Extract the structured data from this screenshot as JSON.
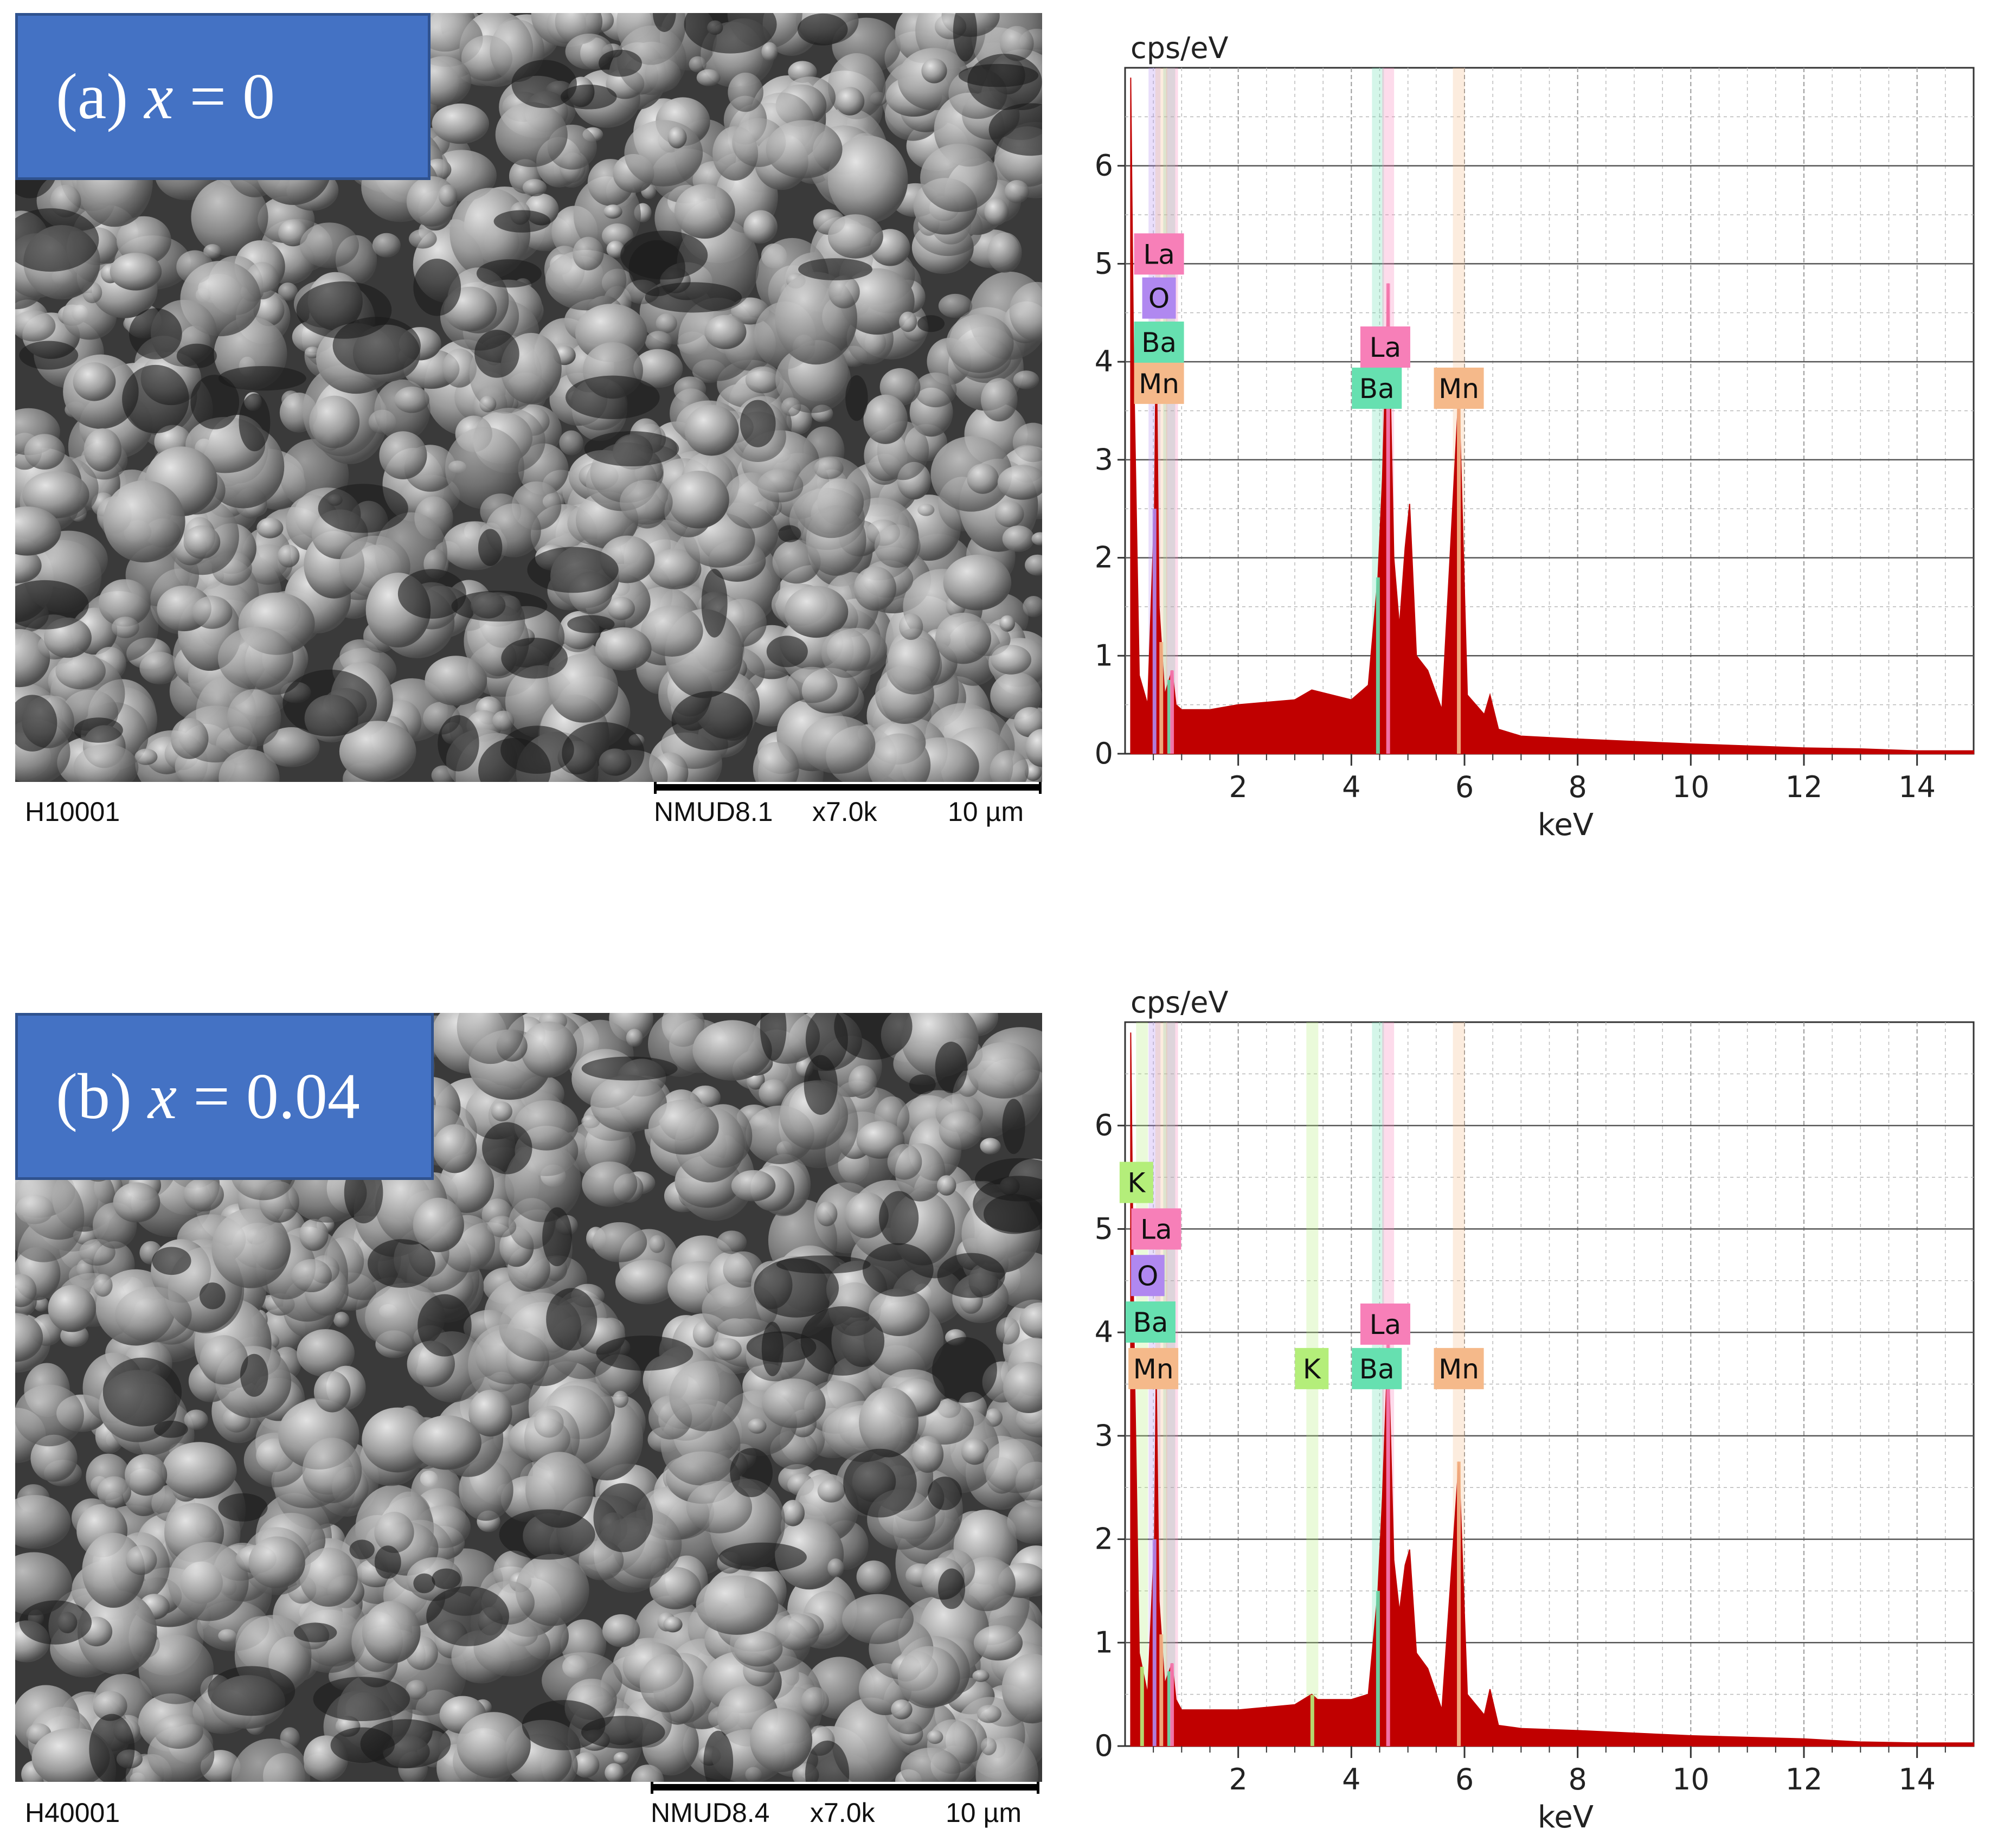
{
  "panels": [
    {
      "label_prefix": "(a)",
      "label_var": "x",
      "label_eq": "= 0",
      "sem": {
        "id": "H10001",
        "instrument": "NMUD8.1",
        "magnification": "x7.0k",
        "scale": "10 µm"
      }
    },
    {
      "label_prefix": "(b)",
      "label_var": "x",
      "label_eq": "= 0.04",
      "sem": {
        "id": "H40001",
        "instrument": "NMUD8.4",
        "magnification": "x7.0k",
        "scale": "10 µm"
      }
    }
  ],
  "element_colors": {
    "La": "#f77fb8",
    "O": "#b088f0",
    "Ba": "#66e0b0",
    "Mn": "#f5b98a",
    "K": "#b4ee7a"
  },
  "chart_data": [
    {
      "type": "area",
      "xlabel": "keV",
      "ylabel": "cps/eV",
      "xlim": [
        0,
        15
      ],
      "ylim": [
        0,
        7
      ],
      "xticks": [
        2,
        4,
        6,
        8,
        10,
        12,
        14
      ],
      "yticks": [
        0,
        1,
        2,
        3,
        4,
        5,
        6
      ],
      "grid": true,
      "spectrum_color": "#c00000",
      "x": [
        0.1,
        0.15,
        0.25,
        0.4,
        0.52,
        0.55,
        0.6,
        0.7,
        0.83,
        0.9,
        1.0,
        1.5,
        2.0,
        3.0,
        3.3,
        4.0,
        4.3,
        4.47,
        4.55,
        4.65,
        4.75,
        4.85,
        4.95,
        5.03,
        5.15,
        5.35,
        5.6,
        5.9,
        6.05,
        6.35,
        6.45,
        6.6,
        7.0,
        8.0,
        10.0,
        12.0,
        13.0,
        14.0,
        15.0
      ],
      "y": [
        6.9,
        4.0,
        0.8,
        0.5,
        2.5,
        4.3,
        1.5,
        0.6,
        0.85,
        0.5,
        0.45,
        0.45,
        0.5,
        0.55,
        0.65,
        0.55,
        0.7,
        1.8,
        2.8,
        4.8,
        2.0,
        1.3,
        2.1,
        2.55,
        1.0,
        0.85,
        0.45,
        3.7,
        0.6,
        0.4,
        0.6,
        0.25,
        0.18,
        0.15,
        0.1,
        0.06,
        0.05,
        0.03,
        0.03
      ],
      "element_lines": [
        {
          "element": "O",
          "energy": 0.52
        },
        {
          "element": "Ba",
          "energy": 0.78
        },
        {
          "element": "La",
          "energy": 0.83
        },
        {
          "element": "Mn",
          "energy": 0.64
        },
        {
          "element": "Ba",
          "energy": 4.47
        },
        {
          "element": "La",
          "energy": 4.65
        },
        {
          "element": "Mn",
          "energy": 5.9
        }
      ],
      "tags": [
        {
          "element": "La",
          "text": "La",
          "x": 0.6,
          "y": 5.1
        },
        {
          "element": "O",
          "text": "O",
          "x": 0.6,
          "y": 4.65
        },
        {
          "element": "Ba",
          "text": "Ba",
          "x": 0.6,
          "y": 4.2
        },
        {
          "element": "Mn",
          "text": "Mn",
          "x": 0.6,
          "y": 3.78
        },
        {
          "element": "La",
          "text": "La",
          "x": 4.6,
          "y": 4.15
        },
        {
          "element": "Ba",
          "text": "Ba",
          "x": 4.45,
          "y": 3.73
        },
        {
          "element": "Mn",
          "text": "Mn",
          "x": 5.9,
          "y": 3.73
        }
      ]
    },
    {
      "type": "area",
      "xlabel": "keV",
      "ylabel": "cps/eV",
      "xlim": [
        0,
        15
      ],
      "ylim": [
        0,
        7
      ],
      "xticks": [
        2,
        4,
        6,
        8,
        10,
        12,
        14
      ],
      "yticks": [
        0,
        1,
        2,
        3,
        4,
        5,
        6
      ],
      "grid": true,
      "spectrum_color": "#c00000",
      "x": [
        0.1,
        0.15,
        0.25,
        0.4,
        0.52,
        0.55,
        0.6,
        0.7,
        0.83,
        0.9,
        1.0,
        1.5,
        2.0,
        3.0,
        3.3,
        3.4,
        4.0,
        4.3,
        4.47,
        4.55,
        4.65,
        4.75,
        4.85,
        4.95,
        5.03,
        5.15,
        5.35,
        5.6,
        5.9,
        6.05,
        6.35,
        6.45,
        6.6,
        7.0,
        8.0,
        10.0,
        12.0,
        13.0,
        14.0,
        15.0
      ],
      "y": [
        6.9,
        4.2,
        0.9,
        0.5,
        2.0,
        3.6,
        1.4,
        0.6,
        0.8,
        0.45,
        0.35,
        0.35,
        0.35,
        0.4,
        0.5,
        0.45,
        0.45,
        0.5,
        1.5,
        2.4,
        3.9,
        1.8,
        1.3,
        1.75,
        1.9,
        0.9,
        0.75,
        0.35,
        2.75,
        0.5,
        0.3,
        0.55,
        0.2,
        0.17,
        0.15,
        0.1,
        0.07,
        0.04,
        0.03,
        0.03
      ],
      "element_lines": [
        {
          "element": "O",
          "energy": 0.52
        },
        {
          "element": "K",
          "energy": 0.3
        },
        {
          "element": "Ba",
          "energy": 0.78
        },
        {
          "element": "La",
          "energy": 0.83
        },
        {
          "element": "Mn",
          "energy": 0.64
        },
        {
          "element": "K",
          "energy": 3.31
        },
        {
          "element": "Ba",
          "energy": 4.47
        },
        {
          "element": "La",
          "energy": 4.65
        },
        {
          "element": "Mn",
          "energy": 5.9
        }
      ],
      "tags": [
        {
          "element": "K",
          "text": "K",
          "x": 0.2,
          "y": 5.45
        },
        {
          "element": "La",
          "text": "La",
          "x": 0.55,
          "y": 5.0
        },
        {
          "element": "O",
          "text": "O",
          "x": 0.4,
          "y": 4.55
        },
        {
          "element": "Ba",
          "text": "Ba",
          "x": 0.45,
          "y": 4.1
        },
        {
          "element": "Mn",
          "text": "Mn",
          "x": 0.5,
          "y": 3.65
        },
        {
          "element": "K",
          "text": "K",
          "x": 3.3,
          "y": 3.65
        },
        {
          "element": "La",
          "text": "La",
          "x": 4.6,
          "y": 4.08
        },
        {
          "element": "Ba",
          "text": "Ba",
          "x": 4.45,
          "y": 3.65
        },
        {
          "element": "Mn",
          "text": "Mn",
          "x": 5.9,
          "y": 3.65
        }
      ]
    }
  ]
}
